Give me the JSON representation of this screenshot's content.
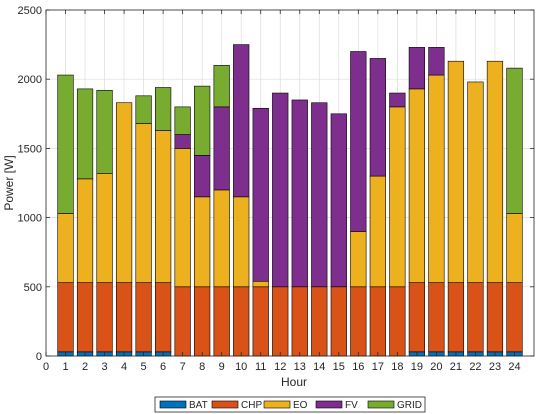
{
  "chart_data": {
    "type": "bar",
    "stacked": true,
    "xlabel": "Hour",
    "ylabel": "Power [W]",
    "xlim": [
      0,
      25
    ],
    "ylim": [
      0,
      2500
    ],
    "x_ticks": [
      0,
      1,
      2,
      3,
      4,
      5,
      6,
      7,
      8,
      9,
      10,
      11,
      12,
      13,
      14,
      15,
      16,
      17,
      18,
      19,
      20,
      21,
      22,
      23,
      24
    ],
    "y_ticks": [
      0,
      500,
      1000,
      1500,
      2000,
      2500
    ],
    "grid": true,
    "legend_position": "bottom",
    "categories": [
      1,
      2,
      3,
      4,
      5,
      6,
      7,
      8,
      9,
      10,
      11,
      12,
      13,
      14,
      15,
      16,
      17,
      18,
      19,
      20,
      21,
      22,
      23,
      24
    ],
    "series": [
      {
        "name": "BAT",
        "color": "#0072BD",
        "values": [
          30,
          30,
          30,
          30,
          30,
          30,
          0,
          0,
          0,
          0,
          0,
          0,
          0,
          0,
          0,
          0,
          0,
          0,
          30,
          30,
          30,
          30,
          30,
          30
        ]
      },
      {
        "name": "CHP",
        "color": "#D95319",
        "values": [
          500,
          500,
          500,
          500,
          500,
          500,
          500,
          500,
          500,
          500,
          500,
          500,
          500,
          500,
          500,
          500,
          500,
          500,
          500,
          500,
          500,
          500,
          500,
          500
        ]
      },
      {
        "name": "EO",
        "color": "#EDB120",
        "values": [
          500,
          750,
          790,
          1300,
          1150,
          1100,
          1000,
          650,
          700,
          650,
          40,
          0,
          0,
          0,
          0,
          400,
          800,
          1300,
          1400,
          1500,
          1600,
          1450,
          1600,
          500
        ]
      },
      {
        "name": "FV",
        "color": "#7E2F8E",
        "values": [
          0,
          0,
          0,
          0,
          0,
          0,
          100,
          300,
          600,
          1100,
          1250,
          1400,
          1350,
          1330,
          1250,
          1300,
          850,
          100,
          300,
          200,
          0,
          0,
          0,
          0
        ]
      },
      {
        "name": "GRID",
        "color": "#77AC30",
        "values": [
          1000,
          650,
          600,
          0,
          200,
          310,
          200,
          500,
          300,
          0,
          0,
          0,
          0,
          0,
          0,
          0,
          0,
          0,
          0,
          0,
          0,
          0,
          0,
          1050
        ]
      }
    ]
  }
}
